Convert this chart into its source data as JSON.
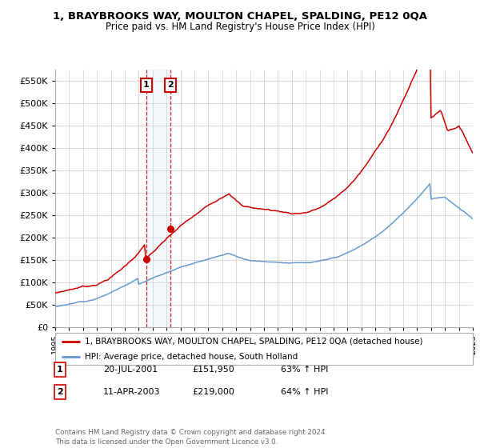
{
  "title": "1, BRAYBROOKS WAY, MOULTON CHAPEL, SPALDING, PE12 0QA",
  "subtitle": "Price paid vs. HM Land Registry's House Price Index (HPI)",
  "ylabel_ticks": [
    "£0",
    "£50K",
    "£100K",
    "£150K",
    "£200K",
    "£250K",
    "£300K",
    "£350K",
    "£400K",
    "£450K",
    "£500K",
    "£550K"
  ],
  "ytick_values": [
    0,
    50000,
    100000,
    150000,
    200000,
    250000,
    300000,
    350000,
    400000,
    450000,
    500000,
    550000
  ],
  "ylim": [
    0,
    575000
  ],
  "sale1_date": "20-JUL-2001",
  "sale1_price": 151950,
  "sale1_hpi": "63% ↑ HPI",
  "sale2_date": "11-APR-2003",
  "sale2_price": 219000,
  "sale2_hpi": "64% ↑ HPI",
  "legend_line1": "1, BRAYBROOKS WAY, MOULTON CHAPEL, SPALDING, PE12 0QA (detached house)",
  "legend_line2": "HPI: Average price, detached house, South Holland",
  "footer": "Contains HM Land Registry data © Crown copyright and database right 2024.\nThis data is licensed under the Open Government Licence v3.0.",
  "line_color_red": "#cc0000",
  "line_color_blue": "#6699cc",
  "background_color": "#ffffff",
  "grid_color": "#cccccc",
  "sale1_year": 2001.542,
  "sale2_year": 2003.292
}
